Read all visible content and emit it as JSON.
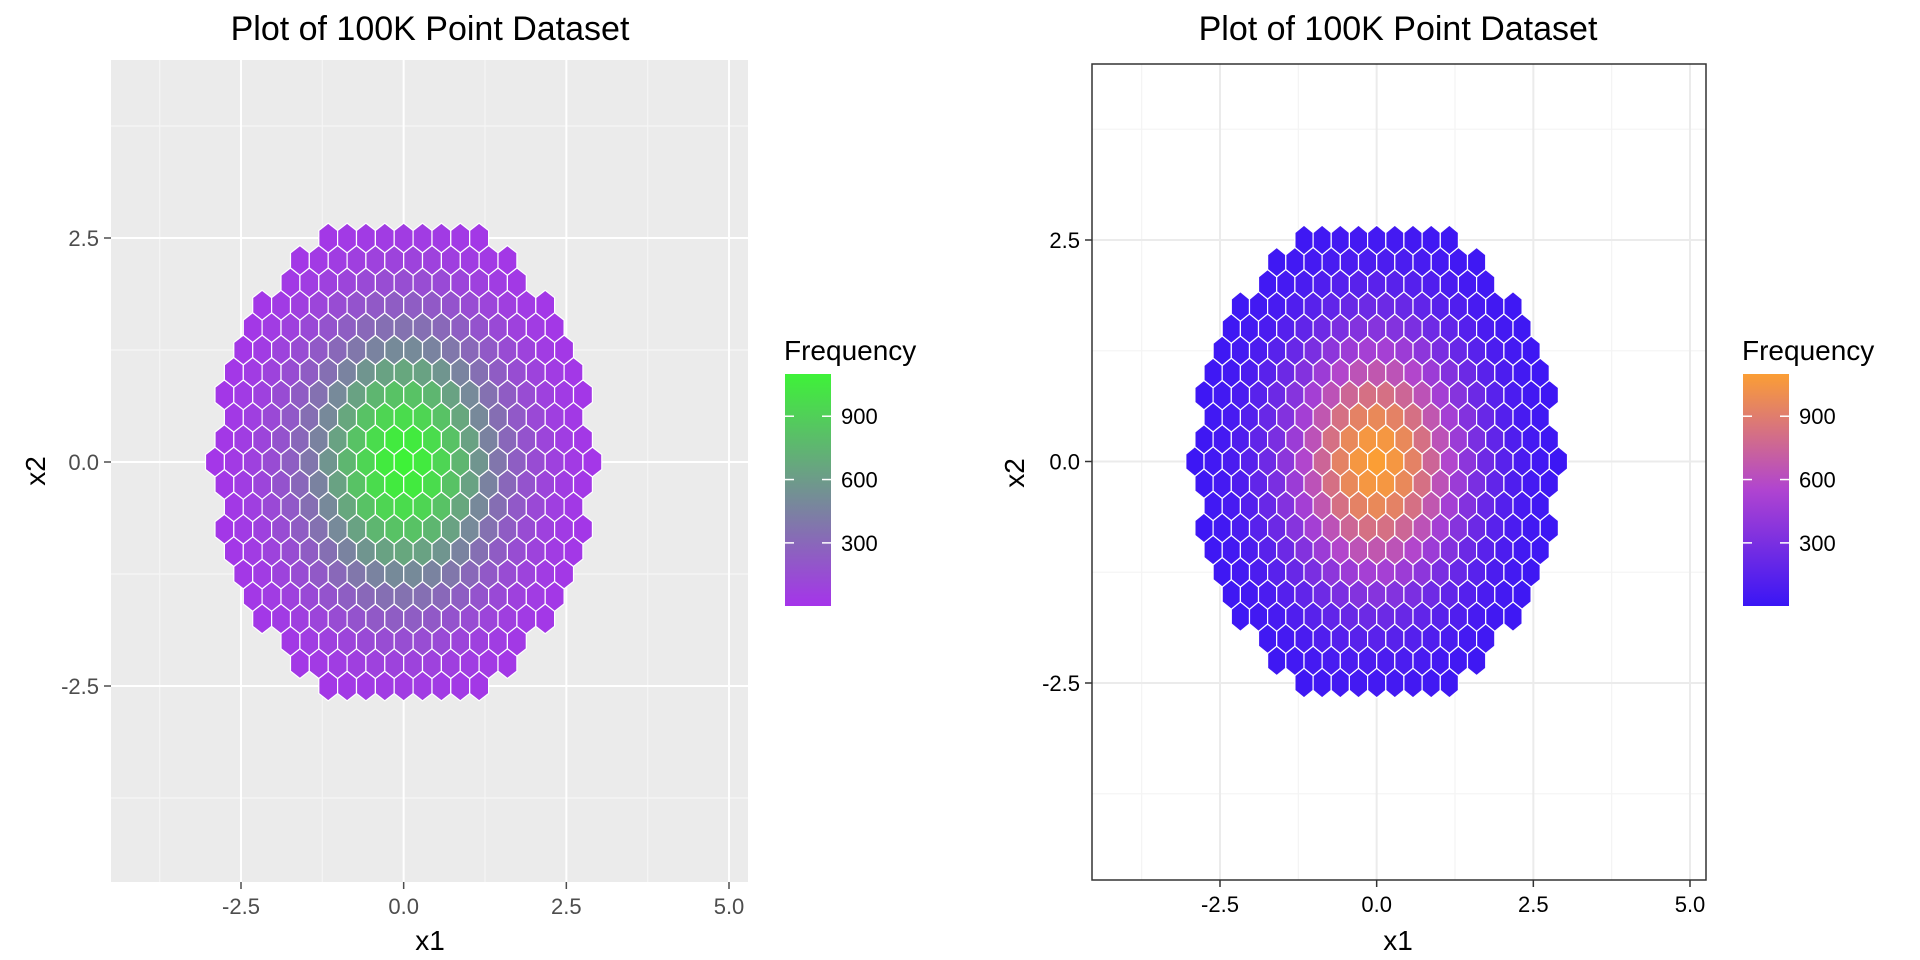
{
  "chart_data": [
    {
      "type": "hexbin",
      "title": "Plot of 100K Point Dataset",
      "xlabel": "x1",
      "ylabel": "x2",
      "xlim": [
        -4.5,
        5.2
      ],
      "ylim": [
        -4.7,
        4.6
      ],
      "x_ticks": [
        -2.5,
        0.0,
        2.5,
        5.0
      ],
      "x_tick_labels": [
        "-2.5",
        "0.0",
        "2.5",
        "5.0"
      ],
      "y_ticks": [
        -2.5,
        0.0,
        2.5
      ],
      "y_tick_labels": [
        "-2.5",
        "0.0",
        "2.5"
      ],
      "theme": "grey",
      "grid": true,
      "legend": {
        "title": "Frequency",
        "position": "right",
        "breaks": [
          300,
          600,
          900
        ],
        "break_labels": [
          "300",
          "600",
          "900"
        ],
        "range": [
          1,
          1100
        ],
        "low_color": "#a534ea",
        "high_color": "#3ef238"
      },
      "hex_center": [
        0.0,
        0.0
      ],
      "hex_radius_x": 2.9,
      "hex_radius_y": 2.7,
      "peak_count": 1100,
      "x_spacing": 0.29,
      "y_spacing": 0.25,
      "hexbin_outline": "#ffffff"
    },
    {
      "type": "hexbin",
      "title": "Plot of 100K Point Dataset",
      "xlabel": "x1",
      "ylabel": "x2",
      "xlim": [
        -4.5,
        5.2
      ],
      "ylim": [
        -4.7,
        4.6
      ],
      "x_ticks": [
        -2.5,
        0.0,
        2.5,
        5.0
      ],
      "x_tick_labels": [
        "-2.5",
        "0.0",
        "2.5",
        "5.0"
      ],
      "y_ticks": [
        -2.5,
        0.0,
        2.5
      ],
      "y_tick_labels": [
        "-2.5",
        "0.0",
        "2.5"
      ],
      "theme": "bw",
      "grid": true,
      "legend": {
        "title": "Frequency",
        "position": "right",
        "breaks": [
          300,
          600,
          900
        ],
        "break_labels": [
          "300",
          "600",
          "900"
        ],
        "range": [
          1,
          1100
        ],
        "low_color": "#3a16f5",
        "mid_color": "#b044d0",
        "high_color": "#fb9e35"
      },
      "hex_center": [
        0.0,
        0.0
      ],
      "hex_radius_x": 2.9,
      "hex_radius_y": 2.7,
      "peak_count": 1100,
      "x_spacing": 0.29,
      "y_spacing": 0.25,
      "hexbin_outline": "#ffffff"
    }
  ]
}
